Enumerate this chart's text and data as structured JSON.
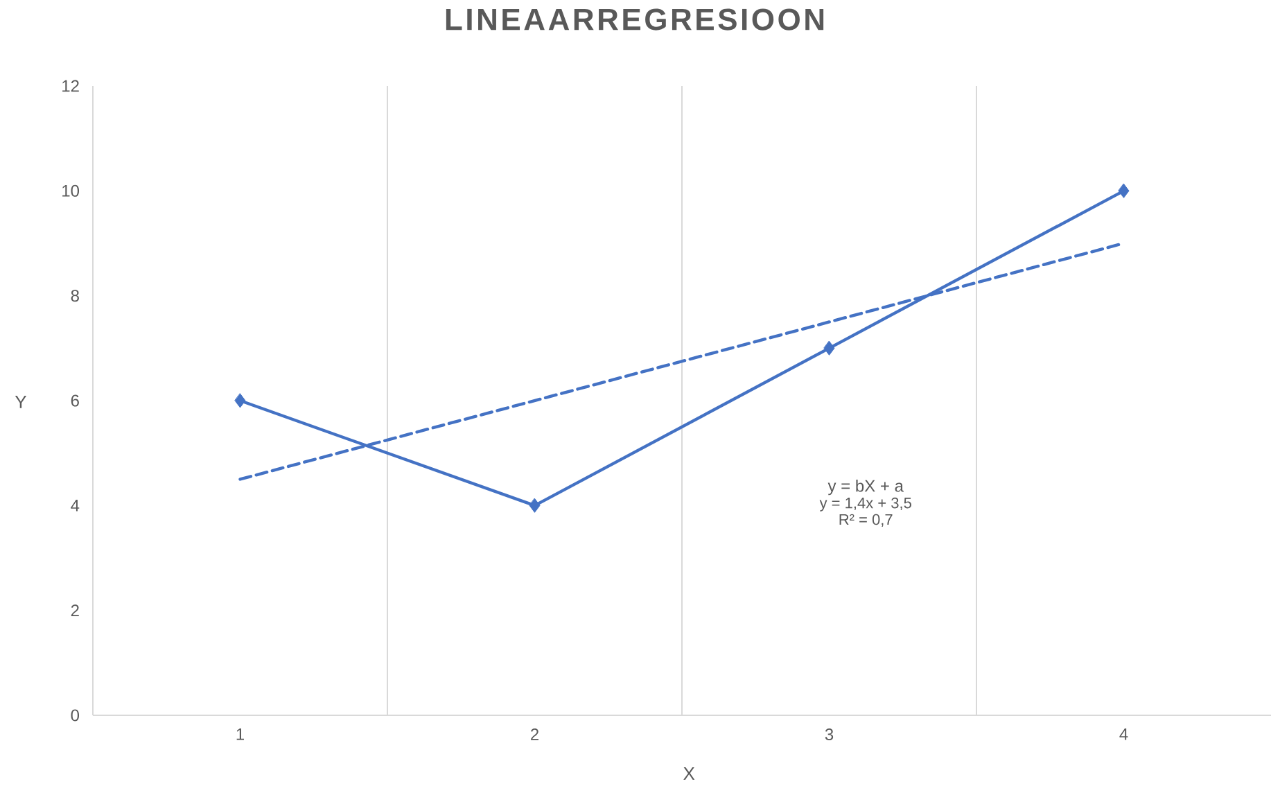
{
  "chart_data": {
    "type": "line",
    "title": "LINEAARREGRESIOON",
    "xlabel": "X",
    "ylabel": "Y",
    "categories": [
      "1",
      "2",
      "3",
      "4"
    ],
    "series": [
      {
        "color": "#4472c4",
        "values": [
          6,
          4,
          7,
          10
        ],
        "marker": "diamond",
        "line_style": "solid"
      },
      {
        "type": "line",
        "color": "#4472c4",
        "values": [
          4.5,
          6,
          7.5,
          9
        ],
        "marker": "none",
        "line_style": "dashed"
      }
    ],
    "ylim": [
      0,
      12
    ],
    "yticks": [
      0,
      2,
      4,
      6,
      8,
      10,
      12
    ],
    "grid": "x",
    "annotations": [
      "y = bX + a",
      "y = 1,4x + 3,5",
      "R² = 0,7"
    ]
  }
}
